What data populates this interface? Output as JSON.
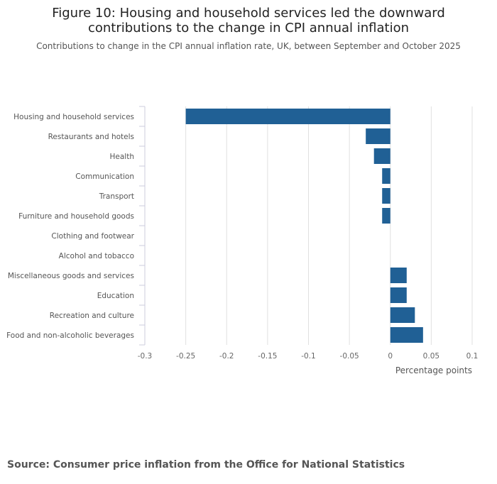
{
  "title_line1": "Figure 10: Housing and household services led the downward",
  "title_line2": "contributions to the change in CPI annual inflation",
  "subtitle": "Contributions to change in the CPI annual inflation rate, UK, between September and October 2025",
  "source": "Source: Consumer price inflation from the Office for National Statistics",
  "chart_data": {
    "type": "bar",
    "orientation": "horizontal",
    "categories": [
      "Housing and household services",
      "Restaurants and hotels",
      "Health",
      "Communication",
      "Transport",
      "Furniture and household goods",
      "Clothing and footwear",
      "Alcohol and tobacco",
      "Miscellaneous goods and services",
      "Education",
      "Recreation and culture",
      "Food and non-alcoholic beverages"
    ],
    "values": [
      -0.25,
      -0.03,
      -0.02,
      -0.01,
      -0.01,
      -0.01,
      0,
      0,
      0.02,
      0.02,
      0.03,
      0.04
    ],
    "xlabel": "Percentage points",
    "xlim": [
      -0.3,
      0.1
    ],
    "xticks": [
      "-0.3",
      "-0.25",
      "-0.2",
      "-0.15",
      "-0.1",
      "-0.05",
      "0",
      "0.05",
      "0.1"
    ],
    "grid": true,
    "bar_color": "#206095"
  }
}
